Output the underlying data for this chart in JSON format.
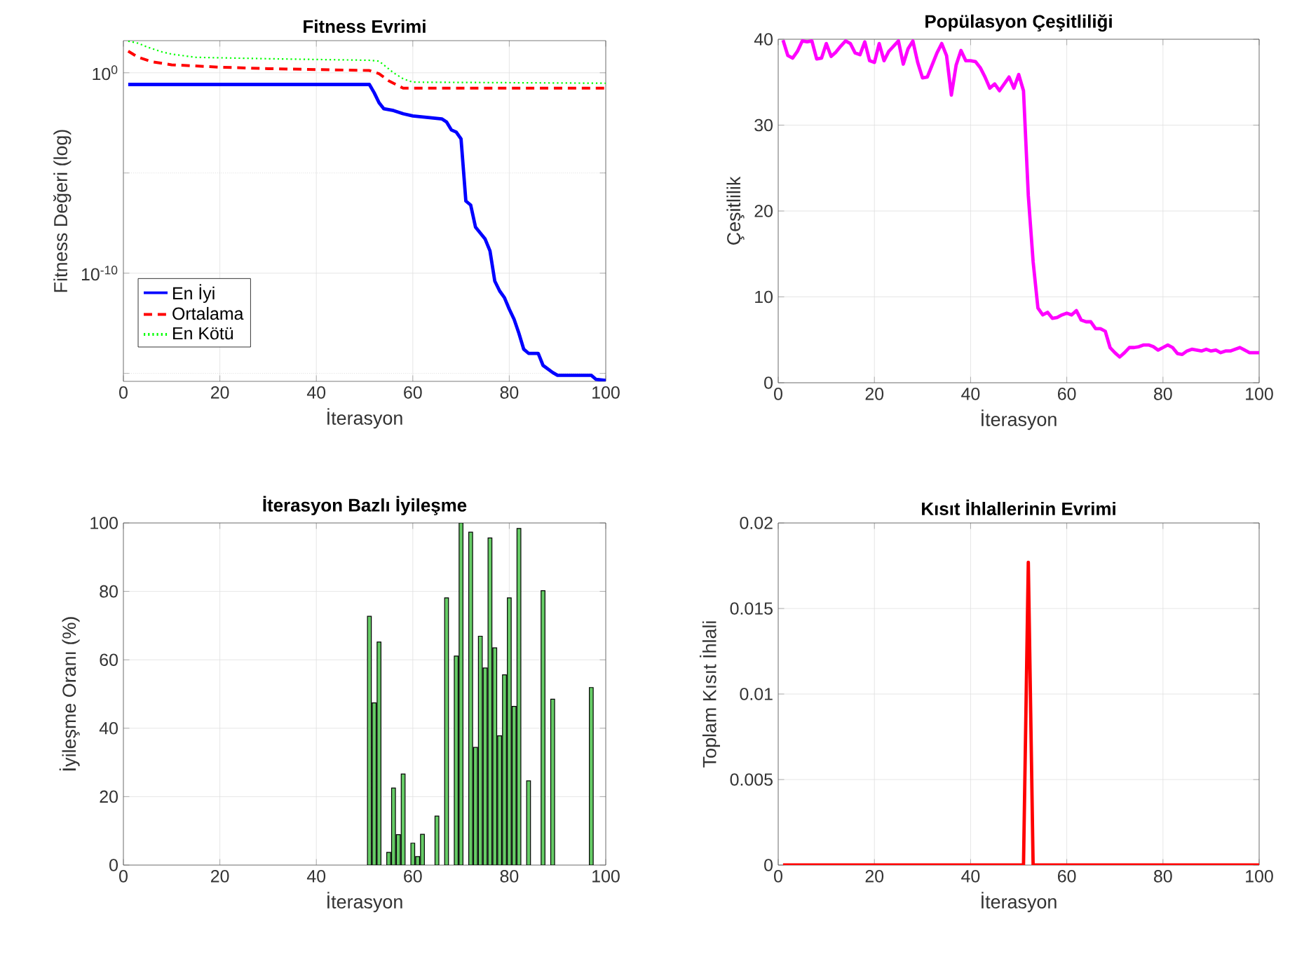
{
  "chart_data": [
    {
      "type": "line",
      "title": "Fitness Evrimi",
      "xlabel": "İterasyon",
      "ylabel": "Fitness Değeri (log)",
      "log": "y",
      "grid": true,
      "legend": "bottom left",
      "xlim": [
        0,
        100
      ],
      "ylim": [
        4e-16,
        40
      ],
      "xticks": [
        0,
        20,
        40,
        60,
        80,
        100
      ],
      "yticks": [
        {
          "value": 1e-15,
          "label": null
        },
        {
          "value": 1e-10,
          "label": "10$^{-10}$"
        },
        {
          "value": 1e-05,
          "label": null
        },
        {
          "value": 1,
          "label": "10$^{0}$"
        }
      ],
      "series": [
        {
          "name": "En İyi",
          "color": "#0000ff",
          "line_style": "solid",
          "x": [
            1,
            51,
            52,
            53,
            54,
            56,
            58,
            60,
            66,
            67,
            68,
            69,
            70,
            71,
            72,
            73,
            75,
            76,
            77,
            78,
            79,
            80,
            81,
            82,
            83,
            84,
            86,
            87,
            89,
            90,
            97,
            98,
            100
          ],
          "values": [
            0.26,
            0.26,
            0.1,
            0.032,
            0.016,
            0.013,
            0.009,
            0.007,
            0.005,
            0.0035,
            0.0014,
            0.0011,
            0.0005,
            4e-07,
            2.5e-07,
            2e-08,
            5e-09,
            1.3e-09,
            4e-11,
            1.3e-11,
            6e-12,
            1.6e-12,
            5e-13,
            1e-13,
            1.6e-14,
            1e-14,
            1e-14,
            2.5e-15,
            1.1e-15,
            8e-16,
            8e-16,
            5e-16,
            4.5e-16
          ]
        },
        {
          "name": "Ortalama",
          "color": "#ff0000",
          "line_style": "dashed",
          "x": [
            1,
            3,
            6,
            10,
            20,
            30,
            40,
            51,
            53,
            55,
            58,
            100
          ],
          "values": [
            12,
            6,
            3.5,
            2.5,
            1.9,
            1.6,
            1.45,
            1.3,
            0.9,
            0.4,
            0.17,
            0.17
          ]
        },
        {
          "name": "En Kötü",
          "color": "#00ff00",
          "line_style": "dotted",
          "x": [
            1,
            3,
            5,
            8,
            10,
            15,
            30,
            51,
            53,
            56,
            58,
            60,
            100
          ],
          "values": [
            38,
            30,
            19,
            11,
            8.5,
            5.9,
            5,
            4.2,
            3.8,
            1,
            0.5,
            0.34,
            0.3
          ]
        }
      ]
    },
    {
      "type": "line",
      "title": "Popülasyon Çeşitliliği",
      "xlabel": "İterasyon",
      "ylabel": "Çeşitlilik",
      "grid": true,
      "xlim": [
        0,
        100
      ],
      "ylim": [
        0,
        40
      ],
      "xticks": [
        0,
        20,
        40,
        60,
        80,
        100
      ],
      "yticks": [
        0,
        10,
        20,
        30,
        40
      ],
      "series": [
        {
          "color": "#ff00ff",
          "line_style": "solid",
          "x": [
            1,
            2,
            3,
            4,
            5,
            6,
            7,
            8,
            9,
            10,
            11,
            12,
            13,
            14,
            15,
            16,
            17,
            18,
            19,
            20,
            21,
            22,
            23,
            24,
            25,
            26,
            27,
            28,
            29,
            30,
            31,
            32,
            33,
            34,
            35,
            36,
            37,
            38,
            39,
            40,
            41,
            42,
            43,
            44,
            45,
            46,
            47,
            48,
            49,
            50,
            51,
            52,
            53,
            54,
            55,
            56,
            57,
            58,
            59,
            60,
            61,
            62,
            63,
            64,
            65,
            66,
            67,
            68,
            69,
            70,
            71,
            72,
            73,
            74,
            75,
            76,
            77,
            78,
            79,
            80,
            81,
            82,
            83,
            84,
            85,
            86,
            87,
            88,
            89,
            90,
            91,
            92,
            93,
            94,
            95,
            96,
            97,
            98,
            99,
            100
          ],
          "values": [
            39.9,
            38.1,
            37.8,
            38.6,
            39.8,
            39.7,
            39.8,
            37.7,
            37.8,
            39.5,
            38.0,
            38.5,
            39.2,
            39.8,
            39.5,
            38.4,
            38.2,
            39.7,
            37.5,
            37.3,
            39.5,
            37.5,
            38.6,
            39.2,
            39.8,
            37.1,
            38.9,
            39.8,
            37.3,
            35.5,
            35.6,
            37.0,
            38.4,
            39.5,
            38.1,
            33.5,
            37.0,
            38.7,
            37.5,
            37.5,
            37.4,
            36.7,
            35.6,
            34.3,
            34.8,
            34.0,
            34.8,
            35.6,
            34.3,
            35.9,
            34.0,
            21.8,
            14.1,
            8.7,
            7.9,
            8.2,
            7.5,
            7.6,
            7.9,
            8.1,
            7.9,
            8.4,
            7.3,
            7.1,
            7.1,
            6.3,
            6.3,
            6.0,
            4.1,
            3.5,
            3.0,
            3.5,
            4.1,
            4.1,
            4.2,
            4.4,
            4.4,
            4.2,
            3.8,
            4.1,
            4.4,
            4.1,
            3.4,
            3.3,
            3.7,
            3.9,
            3.8,
            3.7,
            3.9,
            3.7,
            3.8,
            3.5,
            3.7,
            3.7,
            3.9,
            4.1,
            3.8,
            3.5,
            3.5,
            3.5
          ]
        }
      ]
    },
    {
      "type": "bar",
      "title": "İterasyon Bazlı İyileşme",
      "xlabel": "İterasyon",
      "ylabel": "İyileşme Oranı (%)",
      "grid": true,
      "xlim": [
        0,
        100
      ],
      "ylim": [
        0,
        100
      ],
      "xticks": [
        0,
        20,
        40,
        60,
        80,
        100
      ],
      "yticks": [
        0,
        20,
        40,
        60,
        80,
        100
      ],
      "series": [
        {
          "color": "#66cc66",
          "x": [
            51,
            52,
            53,
            55,
            56,
            57,
            58,
            59,
            60,
            61,
            62,
            63,
            65,
            67,
            69,
            70,
            72,
            73,
            74,
            75,
            76,
            77,
            78,
            79,
            80,
            81,
            82,
            84,
            87,
            89,
            97
          ],
          "values": [
            72.7,
            47.4,
            65.2,
            3.7,
            22.5,
            8.9,
            26.6,
            null,
            6.4,
            2.5,
            9,
            null,
            14.3,
            78.1,
            61.1,
            100,
            97.3,
            34.4,
            66.9,
            57.6,
            95.6,
            63.5,
            37.8,
            55.6,
            78.1,
            46.4,
            98.4,
            24.6,
            80.2,
            48.5,
            51.9
          ]
        }
      ]
    },
    {
      "type": "line",
      "title": "Kısıt İhlallerinin Evrimi",
      "xlabel": "İterasyon",
      "ylabel": "Toplam Kısıt İhlali",
      "grid": true,
      "xlim": [
        0,
        100
      ],
      "ylim": [
        0,
        0.02
      ],
      "xticks": [
        0,
        20,
        40,
        60,
        80,
        100
      ],
      "yticks": [
        0,
        0.005,
        0.01,
        0.015,
        0.02
      ],
      "series": [
        {
          "color": "#ff0000",
          "line_style": "solid",
          "x": [
            1,
            51,
            52,
            53,
            100
          ],
          "values": [
            0,
            0,
            0.0177,
            0,
            0
          ]
        }
      ]
    }
  ]
}
